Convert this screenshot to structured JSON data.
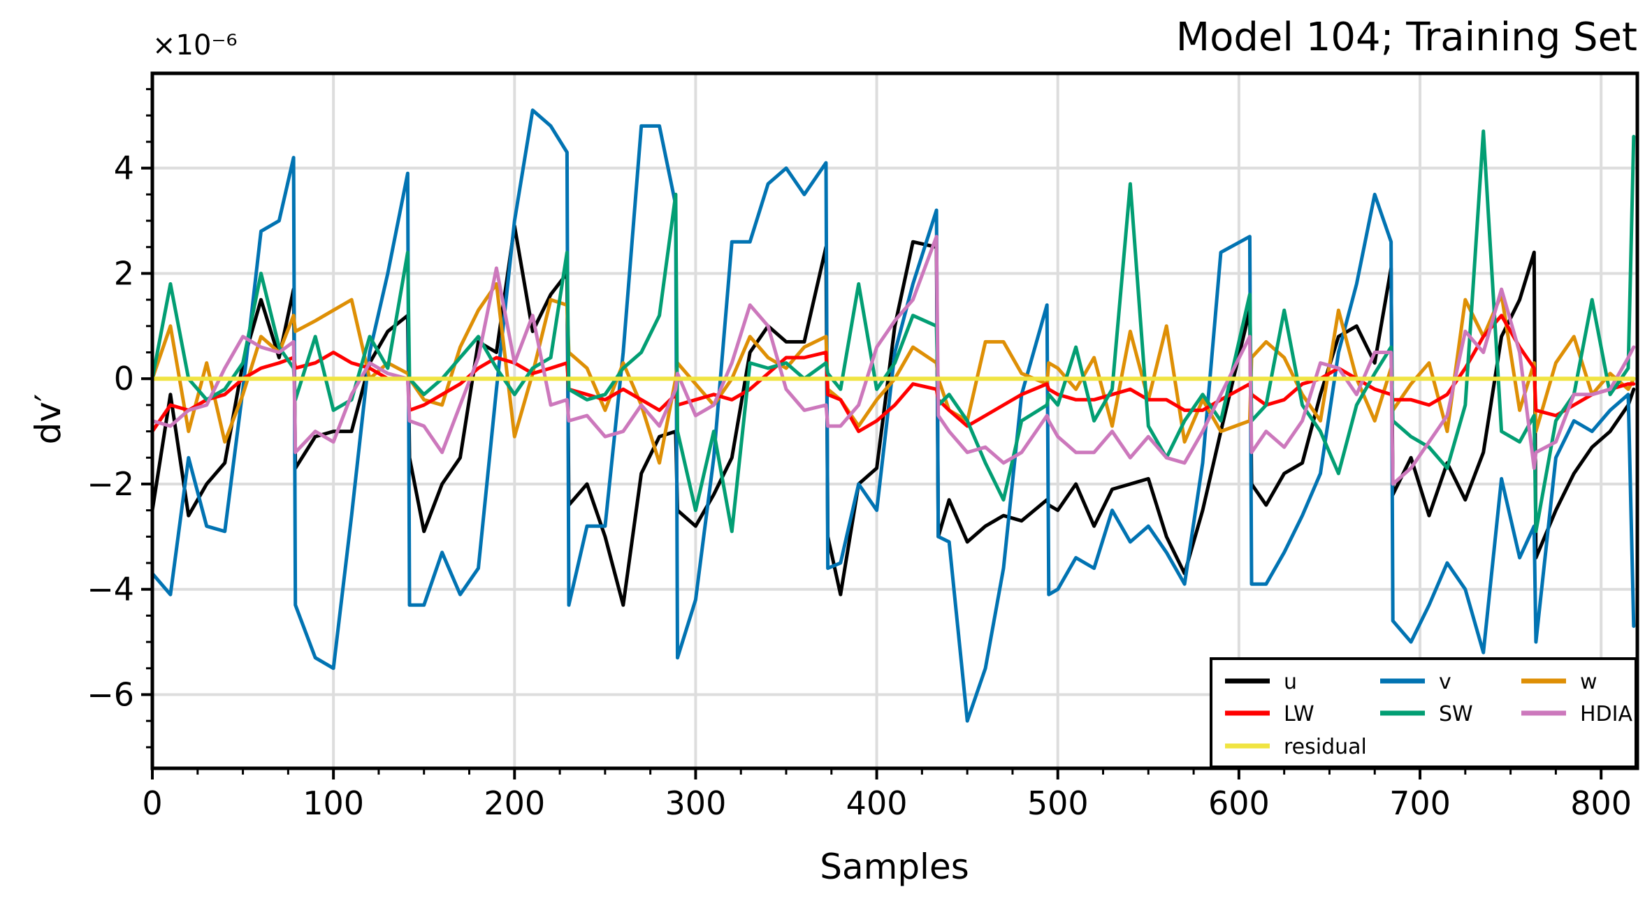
{
  "chart_data": {
    "type": "line",
    "title": "Model 104; Training Set",
    "xlabel": "Samples",
    "ylabel": "dv′",
    "y_multiplier_label": "×10⁻⁶",
    "xlim": [
      0,
      820
    ],
    "ylim": [
      -7.4,
      5.8
    ],
    "x_ticks": [
      0,
      100,
      200,
      300,
      400,
      500,
      600,
      700,
      800
    ],
    "y_ticks": [
      -6,
      -4,
      -2,
      0,
      2,
      4
    ],
    "grid": true,
    "legend_position": "lower-right",
    "x": [
      0,
      10,
      20,
      30,
      40,
      50,
      60,
      70,
      78,
      79,
      90,
      100,
      110,
      120,
      130,
      141,
      142,
      150,
      160,
      170,
      180,
      190,
      200,
      210,
      220,
      229,
      230,
      240,
      250,
      260,
      270,
      280,
      289,
      290,
      300,
      310,
      320,
      330,
      340,
      350,
      360,
      372,
      373,
      380,
      390,
      400,
      410,
      420,
      433,
      434,
      440,
      450,
      460,
      470,
      480,
      494,
      495,
      500,
      510,
      520,
      530,
      540,
      550,
      560,
      570,
      580,
      590,
      606,
      607,
      615,
      625,
      635,
      645,
      655,
      665,
      675,
      684,
      685,
      695,
      705,
      715,
      725,
      735,
      745,
      755,
      763,
      764,
      775,
      785,
      795,
      805,
      815,
      818
    ],
    "series": [
      {
        "name": "u",
        "color": "#000000",
        "values": [
          -2.5,
          -0.3,
          -2.6,
          -2.0,
          -1.6,
          0.3,
          1.5,
          0.4,
          1.7,
          -1.7,
          -1.1,
          -1.0,
          -1.0,
          0.3,
          0.9,
          1.2,
          -1.5,
          -2.9,
          -2.0,
          -1.5,
          0.7,
          0.5,
          2.9,
          0.9,
          1.6,
          2.0,
          -2.4,
          -2.0,
          -3.0,
          -4.3,
          -1.8,
          -1.1,
          -1.0,
          -2.5,
          -2.8,
          -2.2,
          -1.5,
          0.5,
          1.0,
          0.7,
          0.7,
          2.5,
          -3.0,
          -4.1,
          -2.0,
          -1.7,
          1.0,
          2.6,
          2.5,
          -3.0,
          -2.3,
          -3.1,
          -2.8,
          -2.6,
          -2.7,
          -2.3,
          -2.4,
          -2.5,
          -2.0,
          -2.8,
          -2.1,
          -2.0,
          -1.9,
          -3.0,
          -3.7,
          -2.5,
          -1.0,
          1.3,
          -2.0,
          -2.4,
          -1.8,
          -1.6,
          -0.3,
          0.8,
          1.0,
          0.3,
          2.1,
          -2.2,
          -1.5,
          -2.6,
          -1.6,
          -2.3,
          -1.4,
          0.8,
          1.5,
          2.4,
          -3.4,
          -2.5,
          -1.8,
          -1.3,
          -1.0,
          -0.5,
          -0.2
        ]
      },
      {
        "name": "v",
        "color": "#0173b2",
        "values": [
          -3.7,
          -4.1,
          -1.5,
          -2.8,
          -2.9,
          -0.2,
          2.8,
          3.0,
          4.2,
          -4.3,
          -5.3,
          -5.5,
          -2.6,
          0.5,
          2.0,
          3.9,
          -4.3,
          -4.3,
          -3.3,
          -4.1,
          -3.6,
          -0.2,
          3.0,
          5.1,
          4.8,
          4.3,
          -4.3,
          -2.8,
          -2.8,
          0.5,
          4.8,
          4.8,
          3.3,
          -5.3,
          -4.2,
          -1.5,
          2.6,
          2.6,
          3.7,
          4.0,
          3.5,
          4.1,
          -3.6,
          -3.5,
          -2.0,
          -2.5,
          0.5,
          1.8,
          3.2,
          -3.0,
          -3.1,
          -6.5,
          -5.5,
          -3.6,
          -0.3,
          1.4,
          -4.1,
          -4.0,
          -3.4,
          -3.6,
          -2.5,
          -3.1,
          -2.8,
          -3.3,
          -3.9,
          -1.6,
          2.4,
          2.7,
          -3.9,
          -3.9,
          -3.3,
          -2.6,
          -1.8,
          0.5,
          1.8,
          3.5,
          2.6,
          -4.6,
          -5.0,
          -4.3,
          -3.5,
          -4.0,
          -5.2,
          -1.9,
          -3.4,
          -2.8,
          -5.0,
          -1.5,
          -0.8,
          -1.0,
          -0.6,
          -0.3,
          -4.7
        ]
      },
      {
        "name": "w",
        "color": "#de8f05",
        "values": [
          0.0,
          1.0,
          -1.0,
          0.3,
          -1.2,
          -0.3,
          0.8,
          0.5,
          1.2,
          0.9,
          1.1,
          1.3,
          1.5,
          0.0,
          0.3,
          0.1,
          0.0,
          -0.4,
          -0.5,
          0.6,
          1.3,
          1.8,
          -1.1,
          0.1,
          1.5,
          1.4,
          0.5,
          0.2,
          -0.6,
          0.3,
          -0.5,
          -1.6,
          0.0,
          0.3,
          -0.1,
          -0.5,
          0.0,
          0.8,
          0.4,
          0.2,
          0.6,
          0.8,
          -0.2,
          -0.4,
          -0.9,
          -0.4,
          0.0,
          0.6,
          0.3,
          0.0,
          -0.6,
          -0.8,
          0.7,
          0.7,
          0.1,
          -0.1,
          0.3,
          0.2,
          -0.2,
          0.4,
          -0.9,
          0.9,
          -0.4,
          1.0,
          -1.2,
          -0.4,
          -1.0,
          -0.8,
          0.4,
          0.7,
          0.4,
          -0.3,
          -0.8,
          1.3,
          0.0,
          -0.8,
          0.2,
          -0.6,
          -0.1,
          0.3,
          -1.0,
          1.5,
          0.8,
          1.6,
          -0.6,
          0.3,
          -1.0,
          0.3,
          0.8,
          -0.3,
          0.1,
          -0.2,
          0.0
        ]
      },
      {
        "name": "LW",
        "color": "#ff0000",
        "values": [
          -1.0,
          -0.5,
          -0.6,
          -0.4,
          -0.3,
          0.0,
          0.2,
          0.3,
          0.4,
          0.2,
          0.3,
          0.5,
          0.3,
          0.2,
          0.0,
          0.0,
          -0.6,
          -0.5,
          -0.3,
          -0.1,
          0.2,
          0.4,
          0.3,
          0.1,
          0.2,
          0.3,
          -0.2,
          -0.3,
          -0.4,
          -0.2,
          -0.4,
          -0.6,
          -0.3,
          -0.5,
          -0.4,
          -0.3,
          -0.4,
          -0.2,
          0.1,
          0.4,
          0.4,
          0.5,
          -0.3,
          -0.4,
          -1.0,
          -0.8,
          -0.5,
          -0.1,
          -0.2,
          -0.4,
          -0.6,
          -0.9,
          -0.7,
          -0.5,
          -0.3,
          -0.1,
          -0.2,
          -0.3,
          -0.4,
          -0.4,
          -0.3,
          -0.2,
          -0.4,
          -0.4,
          -0.6,
          -0.6,
          -0.4,
          -0.1,
          -0.3,
          -0.5,
          -0.4,
          -0.1,
          0.0,
          0.2,
          0.0,
          -0.2,
          -0.3,
          -0.4,
          -0.4,
          -0.5,
          -0.3,
          0.2,
          0.8,
          1.2,
          0.6,
          0.2,
          -0.6,
          -0.7,
          -0.5,
          -0.3,
          -0.2,
          -0.1,
          -0.1
        ]
      },
      {
        "name": "SW",
        "color": "#029e73",
        "values": [
          0.0,
          1.8,
          0.0,
          -0.4,
          -0.2,
          0.3,
          2.0,
          0.6,
          0.2,
          -0.4,
          0.8,
          -0.6,
          -0.4,
          0.8,
          0.2,
          2.4,
          0.0,
          -0.3,
          0.0,
          0.4,
          0.8,
          0.2,
          -0.3,
          0.2,
          0.4,
          2.4,
          -0.2,
          -0.4,
          -0.3,
          0.2,
          0.5,
          1.2,
          3.5,
          -1.0,
          -2.5,
          -1.0,
          -2.9,
          0.3,
          0.2,
          0.3,
          0.0,
          0.3,
          0.1,
          -0.2,
          1.8,
          -0.2,
          0.3,
          1.2,
          1.0,
          -0.5,
          -0.3,
          -0.8,
          -1.6,
          -2.3,
          -0.8,
          -0.5,
          -0.3,
          -0.5,
          0.6,
          -0.8,
          -0.2,
          3.7,
          -0.9,
          -1.5,
          -0.8,
          -0.3,
          -0.8,
          1.6,
          -0.8,
          -0.5,
          1.3,
          -0.5,
          -1.0,
          -1.8,
          -0.5,
          0.1,
          0.6,
          -0.8,
          -1.1,
          -1.3,
          -1.7,
          -0.5,
          4.7,
          -1.0,
          -1.2,
          -0.7,
          -2.9,
          -0.8,
          -0.3,
          1.5,
          -0.3,
          0.2,
          4.6
        ]
      },
      {
        "name": "HDIA",
        "color": "#cc78bc",
        "values": [
          -0.8,
          -0.9,
          -0.6,
          -0.5,
          0.2,
          0.8,
          0.6,
          0.5,
          0.7,
          -1.4,
          -1.0,
          -1.2,
          -0.3,
          0.3,
          0.1,
          0.0,
          -0.8,
          -0.9,
          -1.4,
          -0.5,
          0.4,
          2.1,
          0.3,
          1.2,
          -0.5,
          -0.4,
          -0.8,
          -0.7,
          -1.1,
          -1.0,
          -0.5,
          -0.9,
          -0.2,
          0.1,
          -0.7,
          -0.5,
          0.3,
          1.4,
          1.0,
          -0.2,
          -0.6,
          -0.5,
          -0.9,
          -0.9,
          -0.5,
          0.6,
          1.1,
          1.5,
          2.7,
          -0.7,
          -1.0,
          -1.4,
          -1.3,
          -1.6,
          -1.4,
          -0.7,
          -0.8,
          -1.1,
          -1.4,
          -1.4,
          -1.0,
          -1.5,
          -1.1,
          -1.5,
          -1.6,
          -1.0,
          -0.3,
          0.8,
          -1.4,
          -1.0,
          -1.3,
          -0.8,
          0.3,
          0.2,
          -0.3,
          0.5,
          0.5,
          -2.0,
          -1.7,
          -1.2,
          -0.7,
          0.9,
          0.5,
          1.7,
          0.5,
          -1.7,
          -1.4,
          -1.2,
          -0.3,
          -0.3,
          -0.2,
          0.4,
          0.6
        ]
      },
      {
        "name": "residual",
        "color": "#f0e442",
        "values": [
          0.0,
          0.0,
          0.0,
          0.0,
          0.0,
          0.0,
          0.0,
          0.0,
          0.0,
          0.0,
          0.0,
          0.0,
          0.0,
          0.0,
          0.0,
          0.0,
          0.0,
          0.0,
          0.0,
          0.0,
          0.0,
          0.0,
          0.0,
          0.0,
          0.0,
          0.0,
          0.0,
          0.0,
          0.0,
          0.0,
          0.0,
          0.0,
          0.0,
          0.0,
          0.0,
          0.0,
          0.0,
          0.0,
          0.0,
          0.0,
          0.0,
          0.0,
          0.0,
          0.0,
          0.0,
          0.0,
          0.0,
          0.0,
          0.0,
          0.0,
          0.0,
          0.0,
          0.0,
          0.0,
          0.0,
          0.0,
          0.0,
          0.0,
          0.0,
          0.0,
          0.0,
          0.0,
          0.0,
          0.0,
          0.0,
          0.0,
          0.0,
          0.0,
          0.0,
          0.0,
          0.0,
          0.0,
          0.0,
          0.0,
          0.0,
          0.0,
          0.0,
          0.0,
          0.0,
          0.0,
          0.0,
          0.0,
          0.0,
          0.0,
          0.0,
          0.0,
          0.0,
          0.0,
          0.0,
          0.0,
          0.0,
          0.0,
          0.0
        ]
      }
    ],
    "legend_order": [
      "u",
      "v",
      "w",
      "LW",
      "SW",
      "HDIA",
      "residual"
    ]
  }
}
